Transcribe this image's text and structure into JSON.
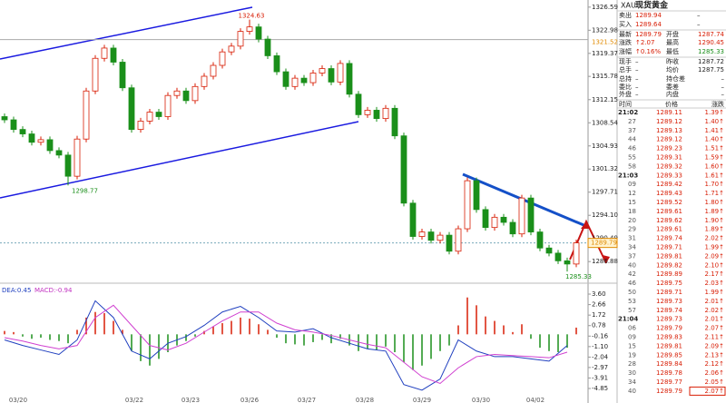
{
  "chart": {
    "ylim": [
      1284.5,
      1327.7
    ],
    "yticks": [
      1326.59,
      1322.98,
      1319.37,
      1315.78,
      1312.15,
      1308.54,
      1304.93,
      1301.32,
      1297.71,
      {
        "value": 1294.1,
        "label": "1294.10"
      },
      1290.49,
      1286.88
    ],
    "ref_line": 1321.52,
    "last_price": 1289.79,
    "candles": [
      [
        1309.5,
        1310.0,
        1308.5,
        1309.0
      ],
      [
        1309.0,
        1309.5,
        1307.0,
        1307.5
      ],
      [
        1307.5,
        1308.0,
        1306.3,
        1306.8
      ],
      [
        1306.8,
        1307.3,
        1305.0,
        1305.5
      ],
      [
        1305.5,
        1306.4,
        1305.0,
        1305.9
      ],
      [
        1305.9,
        1306.4,
        1303.7,
        1304.2
      ],
      [
        1304.2,
        1304.7,
        1303.0,
        1303.5
      ],
      [
        1303.5,
        1304.0,
        1298.77,
        1300.2
      ],
      [
        1300.2,
        1306.5,
        1299.7,
        1306.0
      ],
      [
        1306.0,
        1314.0,
        1305.5,
        1313.5
      ],
      [
        1313.5,
        1319.1,
        1313.0,
        1318.6
      ],
      [
        1318.6,
        1320.7,
        1318.1,
        1320.2
      ],
      [
        1320.2,
        1320.7,
        1317.5,
        1318.0
      ],
      [
        1318.0,
        1318.5,
        1313.5,
        1314.0
      ],
      [
        1314.0,
        1314.5,
        1307.0,
        1307.5
      ],
      [
        1307.5,
        1309.3,
        1307.0,
        1308.8
      ],
      [
        1308.8,
        1310.7,
        1308.3,
        1310.2
      ],
      [
        1310.2,
        1310.7,
        1309.0,
        1309.5
      ],
      [
        1309.5,
        1313.3,
        1309.0,
        1312.8
      ],
      [
        1312.8,
        1314.0,
        1312.3,
        1313.5
      ],
      [
        1313.5,
        1314.0,
        1311.5,
        1312.0
      ],
      [
        1312.0,
        1314.7,
        1311.5,
        1314.2
      ],
      [
        1314.2,
        1316.3,
        1313.7,
        1315.8
      ],
      [
        1315.8,
        1318.0,
        1315.3,
        1317.5
      ],
      [
        1317.5,
        1320.1,
        1317.0,
        1319.6
      ],
      [
        1319.6,
        1321.0,
        1319.1,
        1320.5
      ],
      [
        1320.5,
        1323.3,
        1320.0,
        1322.8
      ],
      [
        1322.8,
        1324.63,
        1322.3,
        1323.5
      ],
      [
        1323.5,
        1324.0,
        1321.1,
        1321.6
      ],
      [
        1321.6,
        1322.1,
        1318.5,
        1319.0
      ],
      [
        1319.0,
        1319.5,
        1316.0,
        1316.5
      ],
      [
        1316.5,
        1317.0,
        1313.7,
        1314.2
      ],
      [
        1314.2,
        1316.0,
        1313.7,
        1315.5
      ],
      [
        1315.5,
        1316.0,
        1314.3,
        1314.8
      ],
      [
        1314.8,
        1316.8,
        1314.3,
        1316.3
      ],
      [
        1316.3,
        1317.5,
        1315.8,
        1317.0
      ],
      [
        1317.0,
        1317.5,
        1314.4,
        1314.9
      ],
      [
        1314.9,
        1318.3,
        1314.4,
        1317.8
      ],
      [
        1317.8,
        1318.3,
        1312.5,
        1313.0
      ],
      [
        1313.0,
        1313.5,
        1309.3,
        1309.8
      ],
      [
        1309.8,
        1311.0,
        1309.3,
        1310.5
      ],
      [
        1310.5,
        1311.0,
        1308.7,
        1309.2
      ],
      [
        1309.2,
        1311.3,
        1308.7,
        1310.8
      ],
      [
        1310.8,
        1311.3,
        1306.0,
        1306.5
      ],
      [
        1306.5,
        1307.0,
        1295.5,
        1296.0
      ],
      [
        1296.0,
        1296.5,
        1290.3,
        1290.8
      ],
      [
        1290.8,
        1292.0,
        1290.3,
        1291.5
      ],
      [
        1291.5,
        1292.0,
        1289.7,
        1290.2
      ],
      [
        1290.2,
        1291.5,
        1289.7,
        1291.0
      ],
      [
        1291.0,
        1291.5,
        1288.0,
        1288.5
      ],
      [
        1288.5,
        1292.5,
        1288.0,
        1292.0
      ],
      [
        1292.0,
        1300.0,
        1291.5,
        1299.5
      ],
      [
        1299.5,
        1300.0,
        1294.5,
        1295.0
      ],
      [
        1295.0,
        1295.5,
        1291.7,
        1292.2
      ],
      [
        1292.2,
        1294.3,
        1291.7,
        1293.8
      ],
      [
        1293.8,
        1294.3,
        1292.5,
        1293.0
      ],
      [
        1293.0,
        1293.5,
        1290.7,
        1291.2
      ],
      [
        1291.2,
        1297.3,
        1290.7,
        1296.8
      ],
      [
        1296.8,
        1297.3,
        1291.0,
        1291.5
      ],
      [
        1291.5,
        1292.0,
        1288.5,
        1289.0
      ],
      [
        1289.0,
        1289.5,
        1287.7,
        1288.2
      ],
      [
        1288.2,
        1288.7,
        1286.5,
        1287.0
      ],
      [
        1287.0,
        1287.5,
        1285.33,
        1286.5
      ],
      [
        1286.5,
        1290.3,
        1286.0,
        1289.8
      ]
    ],
    "dates": [
      "03/20",
      "03/22",
      "03/23",
      "03/26",
      "03/27",
      "03/28",
      "03/29",
      "03/30",
      "04/02"
    ]
  },
  "macd": {
    "dea_label": "DEA:0.45",
    "macd_label": "MACD:-0.94",
    "ylim": [
      -6.15,
      4.09
    ],
    "yticks": [
      {
        "value": 3.6,
        "label": "3.60"
      },
      2.66,
      1.72,
      0.78,
      -0.16,
      {
        "value": -1.1,
        "label": "-1.10"
      },
      -2.04,
      -2.97,
      -3.91,
      -4.85
    ],
    "hist": [
      0.3,
      0.2,
      -0.2,
      -0.4,
      -0.3,
      -0.5,
      -0.6,
      -0.8,
      0.4,
      1.5,
      2.0,
      1.9,
      1.2,
      0.4,
      -1.5,
      -2.4,
      -2.8,
      -2.2,
      -1.6,
      -1.0,
      -0.6,
      -0.2,
      0.3,
      0.7,
      1.0,
      1.2,
      1.5,
      1.4,
      0.9,
      0.4,
      -0.3,
      -0.8,
      -0.9,
      -1.0,
      -0.7,
      -0.5,
      -0.8,
      -0.4,
      -1.0,
      -1.5,
      -1.3,
      -1.4,
      -1.1,
      -1.6,
      -2.5,
      -3.2,
      -2.8,
      -2.2,
      -1.5,
      -1.0,
      0.8,
      3.3,
      2.6,
      1.6,
      1.2,
      0.8,
      0.2,
      0.9,
      -0.4,
      -1.2,
      -1.5,
      -1.6,
      -1.2,
      0.6
    ],
    "dif": [
      -0.5,
      -1.0,
      -1.4,
      -1.8,
      -0.5,
      3.0,
      1.5,
      -1.5,
      -2.2,
      -0.8,
      -0.2,
      0.8,
      2.0,
      2.5,
      1.5,
      0.3,
      0.2,
      0.5,
      -0.3,
      -0.8,
      -1.3,
      -1.5,
      -4.5,
      -5.0,
      -4.0,
      -0.5,
      -1.5,
      -2.0,
      -2.0,
      -2.2,
      -2.4,
      -1.0
    ],
    "dea": [
      -0.3,
      -0.6,
      -1.0,
      -1.3,
      -1.0,
      1.5,
      2.6,
      0.8,
      -1.0,
      -1.4,
      -0.8,
      0.2,
      1.2,
      2.0,
      2.0,
      1.0,
      0.4,
      0.2,
      -0.1,
      -0.5,
      -0.9,
      -1.2,
      -2.5,
      -3.8,
      -4.4,
      -3.0,
      -2.0,
      -1.8,
      -1.9,
      -2.0,
      -2.1,
      -1.6
    ]
  },
  "panel": {
    "symbol": "XAU",
    "name": "现货黄金",
    "quote": [
      [
        "卖出",
        "1289.94",
        "–"
      ],
      [
        "买入",
        "1289.64",
        "–"
      ],
      [
        "最新",
        "1289.79",
        "开盘",
        "1287.74"
      ],
      [
        "涨跌",
        "↑2.07",
        "最高",
        "1290.45"
      ],
      [
        "涨幅",
        "↑0.16%",
        "最低",
        "1285.33"
      ],
      [
        "现手",
        "–",
        "昨收",
        "1287.72"
      ],
      [
        "总手",
        "–",
        "均价",
        "1287.75"
      ],
      [
        "总持",
        "–",
        "持仓差",
        "–"
      ],
      [
        "委比",
        "–",
        "委差",
        "–"
      ],
      [
        "外盘",
        "–",
        "内盘",
        "–"
      ]
    ],
    "columns": [
      "时间",
      "价格",
      "涨跌"
    ],
    "ticks": [
      [
        "21:02",
        "1289.11",
        "1.39↑"
      ],
      [
        "27",
        "1289.12",
        "1.40↑"
      ],
      [
        "37",
        "1289.13",
        "1.41↑"
      ],
      [
        "44",
        "1289.12",
        "1.40↑"
      ],
      [
        "46",
        "1289.23",
        "1.51↑"
      ],
      [
        "55",
        "1289.31",
        "1.59↑"
      ],
      [
        "58",
        "1289.32",
        "1.60↑"
      ],
      [
        "21:03",
        "1289.33",
        "1.61↑"
      ],
      [
        "09",
        "1289.42",
        "1.70↑"
      ],
      [
        "12",
        "1289.43",
        "1.71↑"
      ],
      [
        "15",
        "1289.52",
        "1.80↑"
      ],
      [
        "18",
        "1289.61",
        "1.89↑"
      ],
      [
        "20",
        "1289.62",
        "1.90↑"
      ],
      [
        "29",
        "1289.61",
        "1.89↑"
      ],
      [
        "31",
        "1289.74",
        "2.02↑"
      ],
      [
        "34",
        "1289.71",
        "1.99↑"
      ],
      [
        "37",
        "1289.81",
        "2.09↑"
      ],
      [
        "40",
        "1289.82",
        "2.10↑"
      ],
      [
        "42",
        "1289.89",
        "2.17↑"
      ],
      [
        "46",
        "1289.75",
        "2.03↑"
      ],
      [
        "50",
        "1289.71",
        "1.99↑"
      ],
      [
        "53",
        "1289.73",
        "2.01↑"
      ],
      [
        "57",
        "1289.74",
        "2.02↑"
      ],
      [
        "21:04",
        "1289.73",
        "2.01↑"
      ],
      [
        "06",
        "1289.79",
        "2.07↑"
      ],
      [
        "09",
        "1289.83",
        "2.11↑"
      ],
      [
        "15",
        "1289.81",
        "2.09↑"
      ],
      [
        "19",
        "1289.85",
        "2.13↑"
      ],
      [
        "28",
        "1289.84",
        "2.12↑"
      ],
      [
        "30",
        "1289.78",
        "2.06↑"
      ],
      [
        "34",
        "1289.77",
        "2.05↑"
      ],
      [
        "40",
        "1289.79",
        "2.07↑"
      ]
    ]
  }
}
